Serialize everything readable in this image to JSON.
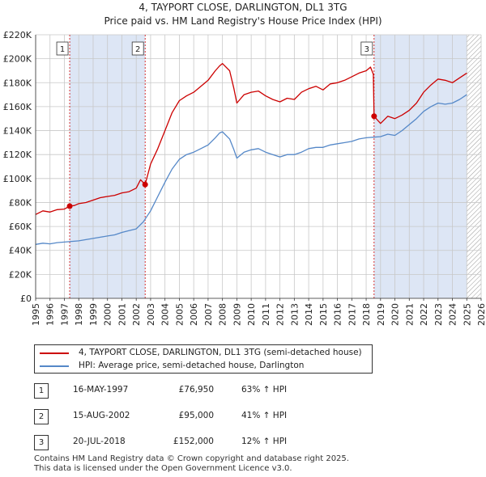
{
  "colors": {
    "price_paid": "#cc0000",
    "hpi": "#5588c8",
    "sale_band": "#dde6f5",
    "grid": "#c8c8c8",
    "hatch": "#999999"
  },
  "chart_data": {
    "type": "line",
    "title": "4, TAYPORT CLOSE, DARLINGTON, DL1 3TG",
    "subtitle": "Price paid vs. HM Land Registry's House Price Index (HPI)",
    "xlabel": "",
    "ylabel": "",
    "xlim": [
      1995.0,
      2026.0
    ],
    "ylim": [
      0,
      220000
    ],
    "grid": true,
    "y_ticks": [
      {
        "value": 0,
        "label": "£0"
      },
      {
        "value": 20000,
        "label": "£20K"
      },
      {
        "value": 40000,
        "label": "£40K"
      },
      {
        "value": 60000,
        "label": "£60K"
      },
      {
        "value": 80000,
        "label": "£80K"
      },
      {
        "value": 100000,
        "label": "£100K"
      },
      {
        "value": 120000,
        "label": "£120K"
      },
      {
        "value": 140000,
        "label": "£140K"
      },
      {
        "value": 160000,
        "label": "£160K"
      },
      {
        "value": 180000,
        "label": "£180K"
      },
      {
        "value": 200000,
        "label": "£200K"
      },
      {
        "value": 220000,
        "label": "£220K"
      }
    ],
    "x_ticks": [
      "1995",
      "1996",
      "1997",
      "1998",
      "1999",
      "2000",
      "2001",
      "2002",
      "2003",
      "2004",
      "2005",
      "2006",
      "2007",
      "2008",
      "2009",
      "2010",
      "2011",
      "2012",
      "2013",
      "2014",
      "2015",
      "2016",
      "2017",
      "2018",
      "2019",
      "2020",
      "2021",
      "2022",
      "2023",
      "2024",
      "2025",
      "2026"
    ],
    "shaded_periods": [
      [
        1997.37,
        2002.62
      ],
      [
        2018.55,
        2025.0
      ]
    ],
    "forecast_start": 2025.0,
    "series": [
      {
        "name": "4, TAYPORT CLOSE, DARLINGTON, DL1 3TG (semi-detached house)",
        "x": [
          1995.0,
          1995.5,
          1996.0,
          1996.5,
          1997.0,
          1997.37,
          1997.7,
          1998.0,
          1998.5,
          1999.0,
          1999.5,
          2000.0,
          2000.5,
          2001.0,
          2001.5,
          2002.0,
          2002.3,
          2002.62,
          2003.0,
          2003.5,
          2004.0,
          2004.5,
          2005.0,
          2005.5,
          2006.0,
          2006.5,
          2007.0,
          2007.5,
          2007.8,
          2008.0,
          2008.5,
          2008.8,
          2009.0,
          2009.5,
          2010.0,
          2010.5,
          2011.0,
          2011.5,
          2012.0,
          2012.5,
          2013.0,
          2013.5,
          2014.0,
          2014.5,
          2015.0,
          2015.5,
          2016.0,
          2016.5,
          2017.0,
          2017.5,
          2018.0,
          2018.3,
          2018.5,
          2018.55,
          2019.0,
          2019.5,
          2020.0,
          2020.5,
          2021.0,
          2021.5,
          2022.0,
          2022.5,
          2023.0,
          2023.5,
          2024.0,
          2024.5,
          2025.0
        ],
        "values": [
          70000,
          73000,
          72000,
          74000,
          74500,
          76950,
          77500,
          79000,
          80000,
          82000,
          84000,
          85000,
          86000,
          88000,
          89000,
          92000,
          99000,
          95000,
          112000,
          125000,
          140000,
          155000,
          165000,
          169000,
          172000,
          177000,
          182000,
          190000,
          194000,
          196000,
          190000,
          175000,
          163000,
          170000,
          172000,
          173000,
          169000,
          166000,
          164000,
          167000,
          166000,
          172000,
          175000,
          177000,
          174000,
          179000,
          180000,
          182000,
          185000,
          188000,
          190000,
          193000,
          187000,
          152000,
          146000,
          152000,
          150000,
          153000,
          157000,
          163000,
          172000,
          178000,
          183000,
          182000,
          180000,
          184000,
          188000
        ]
      },
      {
        "name": "HPI: Average price, semi-detached house, Darlington",
        "x": [
          1995.0,
          1995.5,
          1996.0,
          1996.5,
          1997.0,
          1997.5,
          1998.0,
          1998.5,
          1999.0,
          1999.5,
          2000.0,
          2000.5,
          2001.0,
          2001.5,
          2002.0,
          2002.5,
          2003.0,
          2003.5,
          2004.0,
          2004.5,
          2005.0,
          2005.5,
          2006.0,
          2006.5,
          2007.0,
          2007.5,
          2007.8,
          2008.0,
          2008.5,
          2008.8,
          2009.0,
          2009.5,
          2010.0,
          2010.5,
          2011.0,
          2011.5,
          2012.0,
          2012.5,
          2013.0,
          2013.5,
          2014.0,
          2014.5,
          2015.0,
          2015.5,
          2016.0,
          2016.5,
          2017.0,
          2017.5,
          2018.0,
          2018.5,
          2019.0,
          2019.5,
          2020.0,
          2020.5,
          2021.0,
          2021.5,
          2022.0,
          2022.5,
          2023.0,
          2023.5,
          2024.0,
          2024.5,
          2025.0
        ],
        "values": [
          45000,
          46000,
          45500,
          46500,
          47000,
          47500,
          48000,
          49000,
          50000,
          51000,
          52000,
          53000,
          55000,
          56500,
          58000,
          64000,
          73000,
          85000,
          97000,
          108000,
          116000,
          120000,
          122000,
          125000,
          128000,
          134000,
          138000,
          139000,
          133000,
          124000,
          117000,
          122000,
          124000,
          125000,
          122000,
          120000,
          118000,
          120000,
          120000,
          122000,
          125000,
          126000,
          126000,
          128000,
          129000,
          130000,
          131000,
          133000,
          134000,
          134500,
          135000,
          137000,
          136000,
          140000,
          145000,
          150000,
          156000,
          160000,
          163000,
          162000,
          163000,
          166000,
          170000
        ]
      }
    ],
    "sales": [
      {
        "id": "1",
        "x": 1997.37,
        "value": 76950
      },
      {
        "id": "2",
        "x": 2002.62,
        "value": 95000
      },
      {
        "id": "3",
        "x": 2018.55,
        "value": 152000
      }
    ]
  },
  "legend": {
    "items": [
      {
        "label": "4, TAYPORT CLOSE, DARLINGTON, DL1 3TG (semi-detached house)"
      },
      {
        "label": "HPI: Average price, semi-detached house, Darlington"
      }
    ]
  },
  "table": {
    "rows": [
      {
        "num": "1",
        "date": "16-MAY-1997",
        "price": "£76,950",
        "hpi": "63% ↑ HPI"
      },
      {
        "num": "2",
        "date": "15-AUG-2002",
        "price": "£95,000",
        "hpi": "41% ↑ HPI"
      },
      {
        "num": "3",
        "date": "20-JUL-2018",
        "price": "£152,000",
        "hpi": "12% ↑ HPI"
      }
    ]
  },
  "footer": {
    "line1": "Contains HM Land Registry data © Crown copyright and database right 2025.",
    "line2": "This data is licensed under the Open Government Licence v3.0."
  }
}
